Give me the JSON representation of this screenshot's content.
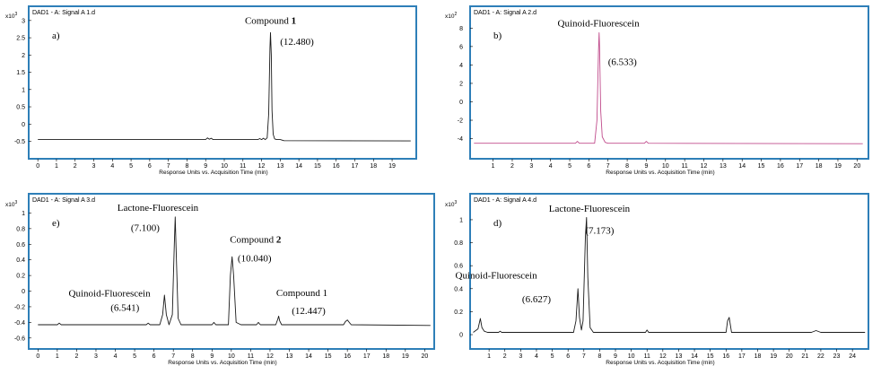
{
  "colors": {
    "frame": "#2e7fb8",
    "black_trace": "#1a1a1a",
    "pink_trace": "#c04c8c"
  },
  "chart_data": [
    {
      "type": "line",
      "header": "DAD1 - A: Signal A 1.d",
      "panel_label": "a)",
      "y_unit": "x10",
      "y_exp": "3",
      "xlabel": "Response Units vs. Acquisition Time (min)",
      "xlim": [
        -0.2,
        20.2
      ],
      "ylim": [
        -0.85,
        3.1
      ],
      "xticks": [
        0,
        1,
        2,
        3,
        4,
        5,
        6,
        7,
        8,
        9,
        10,
        11,
        12,
        13,
        14,
        15,
        16,
        17,
        18,
        19
      ],
      "yticks": [
        -0.5,
        0,
        0.5,
        1,
        1.5,
        2,
        2.5,
        3
      ],
      "ytick_labels": [
        "-0.5",
        "0",
        "0.5",
        "1",
        "1.5",
        "2",
        "2.5",
        "3"
      ],
      "trace_color": "black_trace",
      "baseline": -0.45,
      "series": [
        {
          "name": "trace",
          "x": [
            0,
            9.0,
            9.1,
            9.2,
            9.3,
            9.4,
            9.5,
            11.8,
            11.9,
            12.0,
            12.1,
            12.2,
            12.3,
            12.38,
            12.45,
            12.48,
            12.52,
            12.56,
            12.62,
            12.7,
            12.8,
            13.0,
            13.2,
            20.0
          ],
          "values": [
            -0.45,
            -0.45,
            -0.4,
            -0.44,
            -0.41,
            -0.45,
            -0.45,
            -0.45,
            -0.42,
            -0.45,
            -0.41,
            -0.45,
            -0.4,
            0.3,
            2.2,
            2.65,
            2.0,
            0.4,
            -0.3,
            -0.43,
            -0.45,
            -0.45,
            -0.48,
            -0.49
          ]
        }
      ],
      "annotations": [
        {
          "text": "Compound ",
          "bold": "1",
          "x": 12.48,
          "y": 2.9
        },
        {
          "text": "(12.480)",
          "x": 13.9,
          "y": 2.3
        }
      ]
    },
    {
      "type": "line",
      "header": "DAD1 - A: Signal A 2.d",
      "panel_label": "b)",
      "y_unit": "x10",
      "y_exp": "2",
      "xlabel": "Response Units vs. Acquisition Time (min)",
      "xlim": [
        -0.2,
        20.5
      ],
      "ylim": [
        -5.6,
        9.2
      ],
      "xticks": [
        1,
        2,
        3,
        4,
        5,
        6,
        7,
        8,
        9,
        10,
        11,
        12,
        13,
        14,
        15,
        16,
        17,
        18,
        19,
        20
      ],
      "yticks": [
        -4,
        -2,
        0,
        2,
        4,
        6,
        8
      ],
      "ytick_labels": [
        "-4",
        "-2",
        "0",
        "2",
        "4",
        "6",
        "8"
      ],
      "trace_color": "pink_trace",
      "baseline": -4.5,
      "series": [
        {
          "name": "trace",
          "x": [
            0,
            5.3,
            5.4,
            5.5,
            6.3,
            6.42,
            6.5,
            6.533,
            6.56,
            6.62,
            6.7,
            6.85,
            7.0,
            8.9,
            9.0,
            9.1,
            20.3
          ],
          "values": [
            -4.5,
            -4.5,
            -4.3,
            -4.5,
            -4.5,
            -2.0,
            5.5,
            7.5,
            6.0,
            -1.0,
            -3.8,
            -4.4,
            -4.5,
            -4.5,
            -4.3,
            -4.5,
            -4.55
          ]
        }
      ],
      "annotations": [
        {
          "text": "Quinoid-Fluorescein",
          "x": 6.5,
          "y": 8.2
        },
        {
          "text": "(6.533)",
          "x": 7.75,
          "y": 4.0
        }
      ]
    },
    {
      "type": "line",
      "header": "DAD1 - A: Signal A 3.d",
      "panel_label": "e)",
      "y_unit": "x10",
      "y_exp": "3",
      "xlabel": "Response Units vs. Acquisition Time (min)",
      "xlim": [
        -0.2,
        20.4
      ],
      "ylim": [
        -0.66,
        1.12
      ],
      "xticks": [
        0,
        1,
        2,
        3,
        4,
        5,
        6,
        7,
        8,
        9,
        10,
        11,
        12,
        13,
        14,
        15,
        16,
        17,
        18,
        19,
        20
      ],
      "yticks": [
        -0.6,
        -0.4,
        -0.2,
        0,
        0.2,
        0.4,
        0.6,
        0.8,
        1
      ],
      "ytick_labels": [
        "-0.6",
        "-0.4",
        "-0.2",
        "0",
        "0.2",
        "0.4",
        "0.6",
        "0.8",
        "1"
      ],
      "trace_color": "black_trace",
      "baseline": -0.43,
      "series": [
        {
          "name": "trace",
          "x": [
            0,
            1.0,
            1.1,
            1.2,
            5.6,
            5.7,
            5.8,
            6.3,
            6.45,
            6.541,
            6.64,
            6.78,
            6.95,
            7.05,
            7.1,
            7.15,
            7.25,
            7.4,
            9.0,
            9.1,
            9.2,
            9.85,
            9.95,
            10.04,
            10.12,
            10.25,
            10.5,
            11.3,
            11.4,
            11.5,
            12.3,
            12.4,
            12.447,
            12.5,
            12.6,
            15.8,
            15.9,
            16.0,
            16.1,
            16.2,
            20.3
          ],
          "values": [
            -0.43,
            -0.43,
            -0.41,
            -0.43,
            -0.43,
            -0.41,
            -0.43,
            -0.43,
            -0.3,
            -0.05,
            -0.3,
            -0.43,
            -0.3,
            0.6,
            0.95,
            0.5,
            -0.35,
            -0.43,
            -0.43,
            -0.4,
            -0.43,
            -0.43,
            0.2,
            0.44,
            0.2,
            -0.4,
            -0.43,
            -0.43,
            -0.4,
            -0.43,
            -0.43,
            -0.36,
            -0.32,
            -0.38,
            -0.43,
            -0.43,
            -0.39,
            -0.37,
            -0.4,
            -0.43,
            -0.44
          ]
        }
      ],
      "annotations": [
        {
          "text": "Lactone-Fluorescein",
          "x": 6.2,
          "y": 1.03
        },
        {
          "text": "(7.100)",
          "x": 5.55,
          "y": 0.77
        },
        {
          "text": "Compound ",
          "bold": "2",
          "x": 11.25,
          "y": 0.62
        },
        {
          "text": "(10.040)",
          "x": 11.2,
          "y": 0.38
        },
        {
          "text": "Quinoid-Fluorescein",
          "x": 3.7,
          "y": -0.07
        },
        {
          "text": "(6.541)",
          "x": 4.5,
          "y": -0.25
        },
        {
          "text": "Compound 1",
          "x": 13.65,
          "y": -0.06
        },
        {
          "text": "(12.447)",
          "x": 14.0,
          "y": -0.29
        }
      ]
    },
    {
      "type": "line",
      "header": "DAD1 - A: Signal A 4.d",
      "panel_label": "d)",
      "y_unit": "x10",
      "y_exp": "3",
      "xlabel": "Response Units vs. Acquisition Time (min)",
      "xlim": [
        -0.2,
        24.9
      ],
      "ylim": [
        -0.07,
        1.14
      ],
      "xticks": [
        1,
        2,
        3,
        4,
        5,
        6,
        7,
        8,
        9,
        10,
        11,
        12,
        13,
        14,
        15,
        16,
        17,
        18,
        19,
        20,
        21,
        22,
        23,
        24
      ],
      "yticks": [
        0,
        0.2,
        0.4,
        0.6,
        0.8,
        1
      ],
      "ytick_labels": [
        "0",
        "0.2",
        "0.4",
        "0.6",
        "0.8",
        "1"
      ],
      "trace_color": "black_trace",
      "baseline": 0.02,
      "series": [
        {
          "name": "trace",
          "x": [
            0,
            0.3,
            0.45,
            0.55,
            0.7,
            0.9,
            1.6,
            1.7,
            1.8,
            6.35,
            6.5,
            6.627,
            6.72,
            6.85,
            6.95,
            7.1,
            7.173,
            7.25,
            7.4,
            7.6,
            10.9,
            11.0,
            11.1,
            16.0,
            16.1,
            16.2,
            16.35,
            21.4,
            21.7,
            22.0,
            24.8
          ],
          "values": [
            0.02,
            0.05,
            0.14,
            0.06,
            0.03,
            0.02,
            0.02,
            0.03,
            0.02,
            0.02,
            0.12,
            0.4,
            0.15,
            0.04,
            0.12,
            0.85,
            1.02,
            0.5,
            0.06,
            0.02,
            0.02,
            0.04,
            0.02,
            0.02,
            0.12,
            0.15,
            0.02,
            0.02,
            0.035,
            0.02,
            0.02
          ]
        }
      ],
      "annotations": [
        {
          "text": "Lactone-Fluorescein",
          "x": 7.35,
          "y": 1.07
        },
        {
          "text": "(7.173)",
          "x": 8.0,
          "y": 0.88
        },
        {
          "text": "Quinoid-Fluorescein",
          "x": 1.45,
          "y": 0.49
        },
        {
          "text": "(6.627)",
          "x": 4.0,
          "y": 0.28
        }
      ]
    }
  ]
}
